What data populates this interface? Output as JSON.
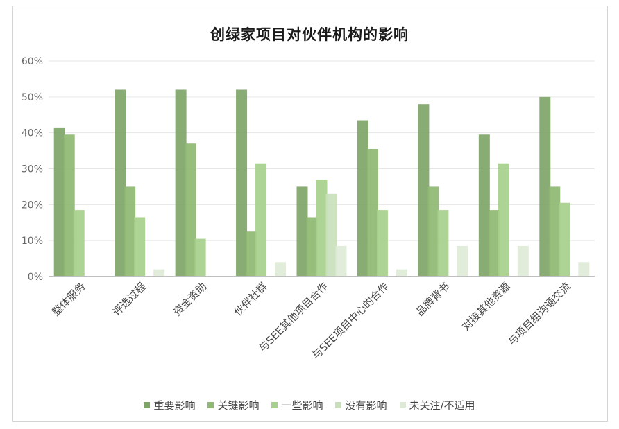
{
  "chart_data": {
    "type": "bar",
    "title": "创绿家项目对伙伴机构的影响",
    "categories": [
      "整体服务",
      "评选过程",
      "资金资助",
      "伙伴社群",
      "与SEE其他项目合作",
      "与SEE项目中心的合作",
      "品牌背书",
      "对接其他资源",
      "与项目组沟通交流"
    ],
    "yticks": [
      "0%",
      "10%",
      "20%",
      "30%",
      "40%",
      "50%",
      "60%"
    ],
    "ylim": [
      0,
      60
    ],
    "grid": true,
    "legend_position": "bottom",
    "series": [
      {
        "name": "重要影响",
        "color": "#7ea567",
        "values": [
          41.5,
          52,
          52,
          52,
          25,
          43.5,
          48,
          39.5,
          50
        ]
      },
      {
        "name": "关键影响",
        "color": "#8fb872",
        "values": [
          39.5,
          25,
          37,
          12.5,
          16.5,
          35.5,
          25,
          18.5,
          25
        ]
      },
      {
        "name": "一些影响",
        "color": "#a7d08c",
        "values": [
          18.5,
          16.5,
          10.5,
          31.5,
          27,
          18.5,
          18.5,
          31.5,
          20.5
        ]
      },
      {
        "name": "没有影响",
        "color": "#c9dfbc",
        "values": [
          0,
          0,
          0,
          0,
          23,
          0,
          0,
          0,
          0
        ]
      },
      {
        "name": "未关注/不适用",
        "color": "#deead7",
        "values": [
          0,
          2,
          0,
          4,
          8.5,
          2,
          8.5,
          8.5,
          4
        ]
      }
    ]
  }
}
